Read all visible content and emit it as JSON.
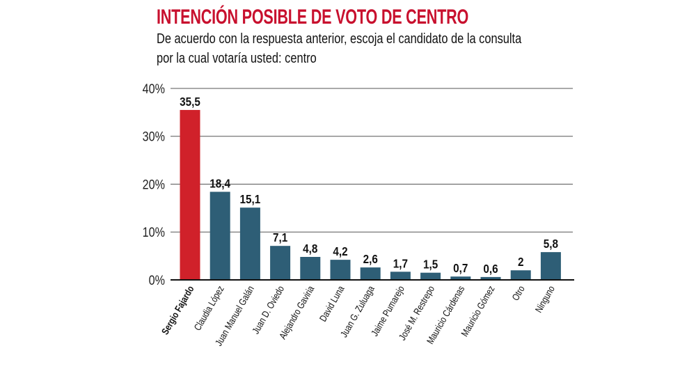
{
  "chart_data": {
    "type": "bar",
    "title": "INTENCIÓN POSIBLE DE VOTO DE CENTRO",
    "subtitle": [
      "De acuerdo con la respuesta anterior, escoja el candidato de la consulta",
      "por la cual votaría usted: centro"
    ],
    "categories": [
      "Sergio Fajardo",
      "Claudia López",
      "Juan Manuel Galán",
      "Juan D. Oviedo",
      "Alejandro Gaviria",
      "David Luna",
      "Juan G. Zuluaga",
      "Jaime Pumarejo",
      "José M. Restrepo",
      "Mauricio Cárdenas",
      "Mauricio Gómez",
      "Otro",
      "Ninguno"
    ],
    "values": [
      35.5,
      18.4,
      15.1,
      7.1,
      4.8,
      4.2,
      2.6,
      1.7,
      1.5,
      0.7,
      0.6,
      2,
      5.8
    ],
    "value_labels": [
      "35,5",
      "18,4",
      "15,1",
      "7,1",
      "4,8",
      "4,2",
      "2,6",
      "1,7",
      "1,5",
      "0,7",
      "0,6",
      "2",
      "5,8"
    ],
    "yticks": [
      0,
      10,
      20,
      30,
      40
    ],
    "ytick_labels": [
      "0%",
      "10%",
      "20%",
      "30%",
      "40%"
    ],
    "ylim": [
      0,
      40
    ],
    "grid": true,
    "highlight_index": 0,
    "colors": {
      "highlight": "#d0212a",
      "default": "#2e5e76",
      "title": "#c8102e"
    }
  }
}
